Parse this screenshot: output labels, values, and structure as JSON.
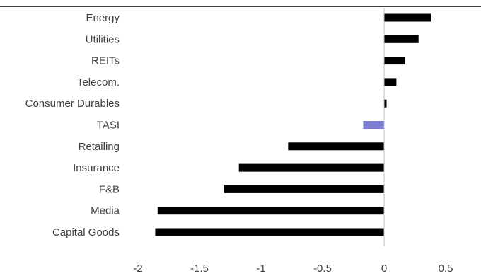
{
  "chart_data": {
    "type": "bar",
    "orientation": "horizontal",
    "title": "",
    "xlabel": "",
    "ylabel": "",
    "categories": [
      "Energy",
      "Utilities",
      "REITs",
      "Telecom.",
      "Consumer Durables",
      "TASI",
      "Retailing",
      "Insurance",
      "F&B",
      "Media",
      "Capital Goods"
    ],
    "values": [
      0.38,
      0.28,
      0.17,
      0.1,
      0.02,
      -0.17,
      -0.78,
      -1.18,
      -1.3,
      -1.84,
      -1.86
    ],
    "highlight_category": "TASI",
    "x_ticks": [
      "-2",
      "-1.5",
      "-1",
      "-0.5",
      "0",
      "0.5"
    ],
    "xlim": [
      -2,
      0.5
    ],
    "grid": false,
    "legend": "none",
    "colors": {
      "bar": "#000000",
      "highlight": "#7b7bd4",
      "axis": "#bfbfbf",
      "text": "#404040"
    }
  }
}
